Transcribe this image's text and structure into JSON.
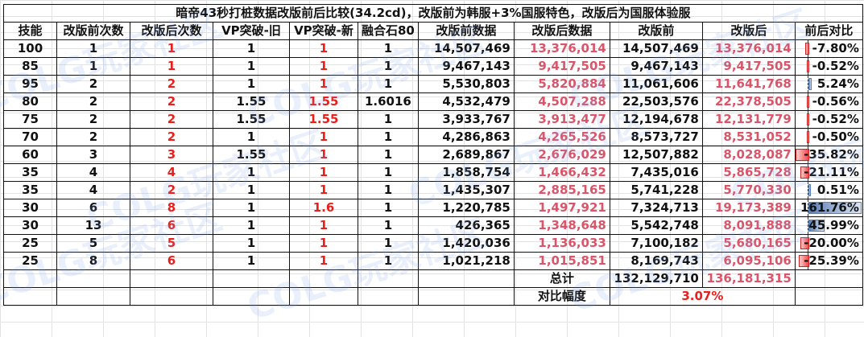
{
  "title": "暗帝43秒打桩数据改版前后比较(34.2cd)，改版前为韩服+3%国服特色，改版后为国服体验服",
  "headers": [
    "技能",
    "改版前次数",
    "改版后次数",
    "VP突破-旧",
    "VP突破-新",
    "融合石80",
    "改版前数据",
    "改版后数据",
    "改版前",
    "改版后",
    "前后对比"
  ],
  "rows": [
    {
      "skill": "100",
      "before_count": "1",
      "after_count": "1",
      "vp_old": "1",
      "vp_new": "1",
      "fusion": "1",
      "before_data": "14,507,469",
      "after_data": "13,376,014",
      "before_total": "14,507,469",
      "after_total": "13,376,014",
      "diff": "-7.80%",
      "diff_value": -7.8
    },
    {
      "skill": "85",
      "before_count": "1",
      "after_count": "1",
      "vp_old": "1",
      "vp_new": "1",
      "fusion": "1",
      "before_data": "9,467,143",
      "after_data": "9,417,505",
      "before_total": "9,467,143",
      "after_total": "9,417,505",
      "diff": "-0.52%",
      "diff_value": -0.52
    },
    {
      "skill": "95",
      "before_count": "2",
      "after_count": "2",
      "vp_old": "1",
      "vp_new": "1",
      "fusion": "1",
      "before_data": "5,530,803",
      "after_data": "5,820,884",
      "before_total": "11,061,606",
      "after_total": "11,641,768",
      "diff": "5.24%",
      "diff_value": 5.24
    },
    {
      "skill": "80",
      "before_count": "2",
      "after_count": "2",
      "vp_old": "1.55",
      "vp_new": "1.55",
      "fusion": "1.6016",
      "before_data": "4,532,479",
      "after_data": "4,507,288",
      "before_total": "22,503,576",
      "after_total": "22,378,505",
      "diff": "-0.56%",
      "diff_value": -0.56
    },
    {
      "skill": "75",
      "before_count": "2",
      "after_count": "2",
      "vp_old": "1.55",
      "vp_new": "1.55",
      "fusion": "1",
      "before_data": "3,933,767",
      "after_data": "3,913,477",
      "before_total": "12,194,678",
      "after_total": "12,131,779",
      "diff": "-0.52%",
      "diff_value": -0.52
    },
    {
      "skill": "70",
      "before_count": "2",
      "after_count": "2",
      "vp_old": "1",
      "vp_new": "1",
      "fusion": "1",
      "before_data": "4,286,863",
      "after_data": "4,265,526",
      "before_total": "8,573,727",
      "after_total": "8,531,052",
      "diff": "-0.50%",
      "diff_value": -0.5
    },
    {
      "skill": "60",
      "before_count": "3",
      "after_count": "3",
      "vp_old": "1.55",
      "vp_new": "1",
      "fusion": "1",
      "before_data": "2,689,867",
      "after_data": "2,676,029",
      "before_total": "12,507,882",
      "after_total": "8,028,087",
      "diff": "-35.82%",
      "diff_value": -35.82
    },
    {
      "skill": "35",
      "before_count": "4",
      "after_count": "4",
      "vp_old": "1",
      "vp_new": "1",
      "fusion": "1",
      "before_data": "1,858,754",
      "after_data": "1,466,432",
      "before_total": "7,435,016",
      "after_total": "5,865,728",
      "diff": "-21.11%",
      "diff_value": -21.11
    },
    {
      "skill": "35",
      "before_count": "4",
      "after_count": "2",
      "vp_old": "1",
      "vp_new": "1",
      "fusion": "1",
      "before_data": "1,435,307",
      "after_data": "2,885,165",
      "before_total": "5,741,228",
      "after_total": "5,770,330",
      "diff": "0.51%",
      "diff_value": 0.51
    },
    {
      "skill": "30",
      "before_count": "6",
      "after_count": "8",
      "vp_old": "1",
      "vp_new": "1.6",
      "fusion": "1",
      "before_data": "1,220,785",
      "after_data": "1,497,921",
      "before_total": "7,324,713",
      "after_total": "19,173,389",
      "diff": "161.76%",
      "diff_value": 161.76
    },
    {
      "skill": "30",
      "before_count": "13",
      "after_count": "6",
      "vp_old": "1",
      "vp_new": "1",
      "fusion": "1",
      "before_data": "426,365",
      "after_data": "1,348,648",
      "before_total": "5,542,748",
      "after_total": "8,091,888",
      "diff": "45.99%",
      "diff_value": 45.99
    },
    {
      "skill": "25",
      "before_count": "5",
      "after_count": "5",
      "vp_old": "1",
      "vp_new": "1",
      "fusion": "1",
      "before_data": "1,420,036",
      "after_data": "1,136,033",
      "before_total": "7,100,182",
      "after_total": "5,680,165",
      "diff": "-20.00%",
      "diff_value": -20.0
    },
    {
      "skill": "25",
      "before_count": "8",
      "after_count": "6",
      "vp_old": "1",
      "vp_new": "1",
      "fusion": "1",
      "before_data": "1,021,218",
      "after_data": "1,015,851",
      "before_total": "8,169,743",
      "after_total": "6,095,106",
      "diff": "-25.39%",
      "diff_value": -25.39
    }
  ],
  "summary": {
    "total_label": "总计",
    "total_before": "132,129,710",
    "total_after": "136,181,315",
    "ratio_label": "对比幅度",
    "ratio_value": "3.07%"
  },
  "watermark": "COLG玩家社区",
  "colors": {
    "after_count_red": "#e8201c",
    "after_data_pink": "#d9566a",
    "neg_bar": "#f04848",
    "pos_bar": "#5a7fb5"
  }
}
